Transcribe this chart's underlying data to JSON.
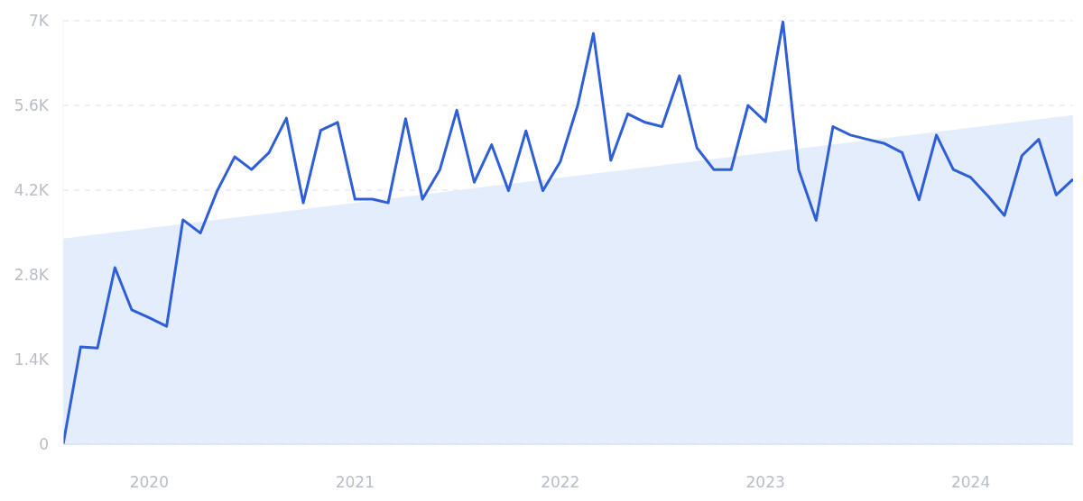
{
  "chart_data": {
    "type": "line",
    "x": [
      "2019-08",
      "2019-09",
      "2019-10",
      "2019-11",
      "2019-12",
      "2020-01",
      "2020-02",
      "2020-03",
      "2020-04",
      "2020-05",
      "2020-06",
      "2020-07",
      "2020-08",
      "2020-09",
      "2020-10",
      "2020-11",
      "2020-12",
      "2021-01",
      "2021-02",
      "2021-03",
      "2021-04",
      "2021-05",
      "2021-06",
      "2021-07",
      "2021-08",
      "2021-09",
      "2021-10",
      "2021-11",
      "2021-12",
      "2022-01",
      "2022-02",
      "2022-03",
      "2022-04",
      "2022-05",
      "2022-06",
      "2022-07",
      "2022-08",
      "2022-09",
      "2022-10",
      "2022-11",
      "2022-12",
      "2023-01",
      "2023-02",
      "2023-03",
      "2023-04",
      "2023-05",
      "2023-06",
      "2023-07",
      "2023-08",
      "2023-09",
      "2023-10",
      "2023-11",
      "2023-12",
      "2024-01",
      "2024-02",
      "2024-03",
      "2024-04",
      "2024-05",
      "2024-06",
      "2024-07"
    ],
    "series": [
      {
        "type": "area",
        "color": "#e3edfb",
        "x": [
          "2019-08",
          "2024-07"
        ],
        "values": [
          3400,
          5440
        ]
      },
      {
        "type": "line",
        "color": "#2f5fd7",
        "values": [
          0,
          1610,
          1590,
          2920,
          2220,
          2090,
          1950,
          3710,
          3490,
          4190,
          4750,
          4540,
          4820,
          5390,
          3990,
          5190,
          5320,
          4050,
          4050,
          3990,
          5380,
          4050,
          4540,
          5520,
          4330,
          4950,
          4190,
          5180,
          4190,
          4670,
          5600,
          6790,
          4690,
          5460,
          5320,
          5250,
          6090,
          4900,
          4540,
          4540,
          5600,
          5330,
          6980,
          4540,
          3700,
          5250,
          5110,
          5040,
          4970,
          4820,
          4040,
          5110,
          4540,
          4410,
          4100,
          3780,
          4770,
          5040,
          4120,
          4380
        ]
      }
    ],
    "xlim": [
      "2019-08",
      "2024-07"
    ],
    "xticks": [
      "2020",
      "2021",
      "2022",
      "2023",
      "2024"
    ],
    "ylim": [
      0,
      7000
    ],
    "yticks": [
      0,
      {
        "value": 1400,
        "label": "1.4K"
      },
      {
        "value": 2800,
        "label": "2.8K"
      },
      {
        "value": 4200,
        "label": "4.2K"
      },
      {
        "value": 5600,
        "label": "5.6K"
      },
      {
        "value": 7000,
        "label": "7K"
      }
    ],
    "grid": "y"
  }
}
